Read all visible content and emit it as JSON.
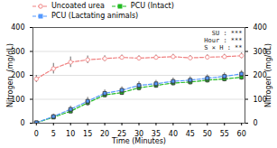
{
  "chart_data": {
    "type": "line",
    "xlabel": "Time (Minutes)",
    "ylabel": "Nitrogen  (mg/dL)",
    "y2label": "Nitrogen  (mg/dL)",
    "x": [
      0,
      5,
      10,
      15,
      20,
      25,
      30,
      35,
      40,
      45,
      50,
      55,
      60
    ],
    "xlim": [
      -1,
      61
    ],
    "xticks": [
      0,
      5,
      10,
      15,
      20,
      25,
      30,
      35,
      40,
      45,
      50,
      55,
      60
    ],
    "ylim": [
      0,
      400
    ],
    "yticks": [
      0,
      100,
      200,
      300,
      400
    ],
    "y2lim": [
      0,
      400
    ],
    "y2ticks": [
      0,
      100,
      200,
      300,
      400
    ],
    "grid": true,
    "legend": "upper left",
    "annotation": "SU : ***\nHour : ***\nS × H : **",
    "series": [
      {
        "name": "Uncoated urea",
        "color": "#f08080",
        "line_style": "dashed",
        "marker": "circle",
        "values": [
          185,
          228,
          255,
          265,
          270,
          275,
          272,
          275,
          278,
          273,
          276,
          278,
          282
        ],
        "errors": [
          15,
          22,
          22,
          16,
          12,
          10,
          10,
          10,
          10,
          10,
          10,
          10,
          12
        ]
      },
      {
        "name": "PCU (Intact)",
        "color": "#22bb22",
        "line_style": "dashed",
        "marker": "square",
        "values": [
          2,
          25,
          50,
          85,
          118,
          128,
          148,
          158,
          168,
          172,
          180,
          185,
          192
        ],
        "errors": [
          1,
          8,
          10,
          14,
          12,
          12,
          13,
          12,
          12,
          12,
          12,
          12,
          12
        ]
      },
      {
        "name": "PCU (Lactating animals)",
        "color": "#5599ff",
        "line_style": "dashed",
        "marker": "square",
        "values": [
          2,
          28,
          58,
          92,
          125,
          138,
          158,
          165,
          175,
          180,
          188,
          196,
          206
        ],
        "errors": [
          1,
          10,
          13,
          16,
          14,
          14,
          15,
          14,
          14,
          14,
          14,
          14,
          14
        ]
      }
    ]
  }
}
